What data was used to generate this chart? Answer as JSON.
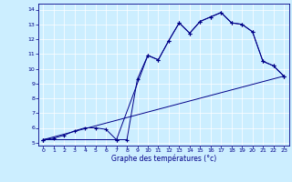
{
  "title": "Graphe des températures (°c)",
  "bg_color": "#cceeff",
  "line_color": "#000088",
  "grid_color": "#ffffff",
  "xlim": [
    -0.5,
    23.5
  ],
  "ylim": [
    4.8,
    14.4
  ],
  "xticks": [
    0,
    1,
    2,
    3,
    4,
    5,
    6,
    7,
    8,
    9,
    10,
    11,
    12,
    13,
    14,
    15,
    16,
    17,
    18,
    19,
    20,
    21,
    22,
    23
  ],
  "yticks": [
    5,
    6,
    7,
    8,
    9,
    10,
    11,
    12,
    13,
    14
  ],
  "series1_x": [
    0,
    1,
    2,
    3,
    4,
    5,
    6,
    7,
    8,
    9,
    10,
    11,
    12,
    13,
    14,
    15,
    16,
    17,
    18,
    19,
    20,
    21,
    22,
    23
  ],
  "series1_y": [
    5.2,
    5.3,
    5.5,
    5.8,
    6.0,
    6.0,
    5.9,
    5.2,
    5.2,
    9.3,
    10.9,
    10.6,
    11.9,
    13.1,
    12.4,
    13.2,
    13.5,
    13.8,
    13.1,
    13.0,
    12.5,
    10.5,
    10.2,
    9.5
  ],
  "series2_x": [
    0,
    7,
    10,
    11,
    12,
    13,
    14,
    15,
    16,
    17,
    18,
    19,
    20,
    21,
    22,
    23
  ],
  "series2_y": [
    5.2,
    5.2,
    10.9,
    10.6,
    11.9,
    13.1,
    12.4,
    13.2,
    13.5,
    13.8,
    13.1,
    13.0,
    12.5,
    10.5,
    10.2,
    9.5
  ],
  "series3_x": [
    0,
    23
  ],
  "series3_y": [
    5.2,
    9.5
  ]
}
